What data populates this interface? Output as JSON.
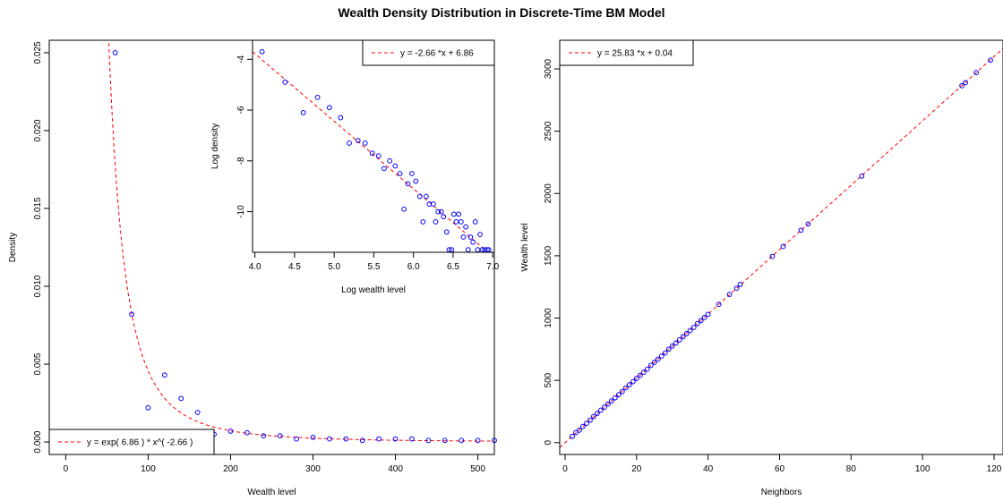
{
  "figure": {
    "title": "Wealth Density Distribution in Discrete-Time BM Model"
  },
  "colors": {
    "points": "#0000ff",
    "fit_line": "#ff0000",
    "axis": "#000000",
    "background": "#ffffff"
  },
  "chart_data": [
    {
      "id": "density",
      "type": "scatter",
      "xlabel": "Wealth level",
      "ylabel": "Density",
      "xlim": [
        -20,
        520
      ],
      "ylim": [
        -0.0008,
        0.0258
      ],
      "x_ticks": [
        "0",
        "100",
        "200",
        "300",
        "400",
        "500"
      ],
      "y_ticks": [
        "0.000",
        "0.005",
        "0.010",
        "0.015",
        "0.020",
        "0.025"
      ],
      "grid": false,
      "legend_position": "bottom-left",
      "series": [
        {
          "marker": "open-circle",
          "x": [
            60,
            80,
            100,
            120,
            140,
            160,
            180,
            200,
            220,
            240,
            260,
            280,
            300,
            320,
            340,
            360,
            380,
            400,
            420,
            440,
            460,
            480,
            500,
            520
          ],
          "y": [
            0.025,
            0.0082,
            0.0022,
            0.0043,
            0.0028,
            0.0019,
            0.0005,
            0.0007,
            0.0006,
            0.0004,
            0.0004,
            0.0002,
            0.0003,
            0.0002,
            0.0002,
            0.0001,
            0.0002,
            0.0002,
            0.0002,
            0.0001,
            0.0001,
            0.0001,
            0.0001,
            0.0001
          ]
        },
        {
          "name": "y = exp( 6.86 ) * x^( -2.66 )",
          "type": "fit-line",
          "style": "dashed",
          "intercept": 6.86,
          "exponent": -2.66,
          "x_range": [
            50,
            520
          ]
        }
      ]
    },
    {
      "id": "log-density-inset",
      "type": "scatter",
      "xlabel": "Log wealth level",
      "ylabel": "Log density",
      "xlim": [
        3.97,
        7.02
      ],
      "ylim": [
        -11.6,
        -3.25
      ],
      "x_ticks": [
        "4.0",
        "4.5",
        "5.0",
        "5.5",
        "6.0",
        "6.5",
        "7.0"
      ],
      "y_ticks": [
        "-4",
        "-6",
        "-8",
        "-10"
      ],
      "grid": false,
      "legend_position": "top-right",
      "series": [
        {
          "marker": "open-circle",
          "x": [
            4.09,
            4.38,
            4.61,
            4.79,
            4.94,
            5.08,
            5.19,
            5.3,
            5.39,
            5.48,
            5.56,
            5.63,
            5.7,
            5.77,
            5.83,
            5.88,
            5.93,
            5.98,
            6.03,
            6.08,
            6.12,
            6.16,
            6.2,
            6.25,
            6.28,
            6.31,
            6.35,
            6.38,
            6.42,
            6.45,
            6.48,
            6.51,
            6.54,
            6.57,
            6.6,
            6.63,
            6.66,
            6.69,
            6.72,
            6.75,
            6.78,
            6.81,
            6.84,
            6.87,
            6.9,
            6.93,
            6.95
          ],
          "y": [
            -3.7,
            -4.9,
            -6.1,
            -5.5,
            -5.9,
            -6.3,
            -7.3,
            -7.2,
            -7.3,
            -7.7,
            -7.8,
            -8.3,
            -8.0,
            -8.2,
            -8.5,
            -9.9,
            -8.9,
            -8.5,
            -8.8,
            -9.4,
            -10.4,
            -9.4,
            -9.7,
            -9.7,
            -10.4,
            -10.0,
            -10.0,
            -10.2,
            -10.8,
            -11.5,
            -11.5,
            -10.1,
            -10.4,
            -10.1,
            -10.4,
            -11.0,
            -10.6,
            -11.5,
            -11.0,
            -11.2,
            -10.4,
            -11.5,
            -10.9,
            -11.5,
            -11.5,
            -11.5,
            -11.5
          ]
        },
        {
          "name": "y =  -2.66 *x +  6.86",
          "type": "fit-line",
          "style": "dashed",
          "slope": -2.66,
          "intercept": 6.86,
          "x_range": [
            3.97,
            7.02
          ]
        }
      ]
    },
    {
      "id": "wealth-vs-neighbors",
      "type": "scatter",
      "xlabel": "Neighbors",
      "ylabel": "Wealth level",
      "xlim": [
        -1.5,
        122.5
      ],
      "ylim": [
        -95,
        3230
      ],
      "x_ticks": [
        "0",
        "20",
        "40",
        "60",
        "80",
        "100",
        "120"
      ],
      "y_ticks": [
        "0",
        "500",
        "1000",
        "1500",
        "2000",
        "2500",
        "3000"
      ],
      "grid": false,
      "legend_position": "top-left",
      "series": [
        {
          "marker": "open-circle",
          "x": [
            2,
            3,
            4,
            5,
            6,
            7,
            8,
            9,
            10,
            11,
            12,
            13,
            14,
            15,
            16,
            17,
            18,
            19,
            20,
            21,
            22,
            23,
            24,
            25,
            26,
            27,
            28,
            29,
            30,
            31,
            32,
            33,
            34,
            35,
            36,
            37,
            38,
            39,
            40,
            43,
            46,
            48,
            49,
            58,
            61,
            66,
            68,
            83,
            111,
            112,
            115,
            119
          ],
          "y": [
            50,
            80,
            100,
            130,
            155,
            180,
            210,
            235,
            260,
            285,
            310,
            335,
            360,
            385,
            410,
            440,
            465,
            490,
            515,
            540,
            565,
            590,
            620,
            645,
            670,
            695,
            720,
            750,
            775,
            800,
            825,
            850,
            875,
            900,
            925,
            955,
            980,
            1005,
            1030,
            1110,
            1190,
            1240,
            1270,
            1495,
            1575,
            1705,
            1755,
            2140,
            2865,
            2890,
            2970,
            3070
          ]
        },
        {
          "name": "y =  25.83 *x +  0.04",
          "type": "fit-line",
          "style": "dashed",
          "slope": 25.83,
          "intercept": 0.04,
          "x_range": [
            -1.5,
            122.5
          ]
        }
      ]
    }
  ]
}
